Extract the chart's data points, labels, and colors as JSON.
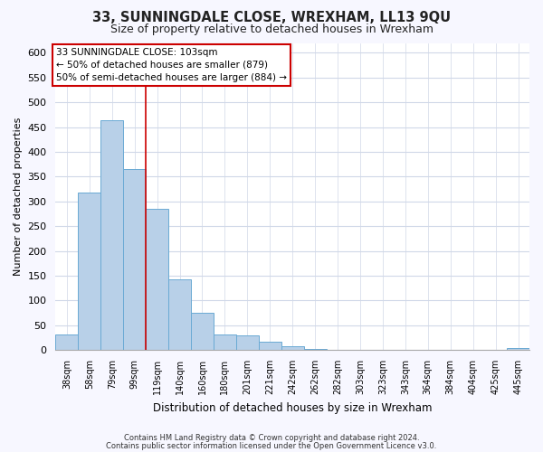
{
  "title": "33, SUNNINGDALE CLOSE, WREXHAM, LL13 9QU",
  "subtitle": "Size of property relative to detached houses in Wrexham",
  "xlabel": "Distribution of detached houses by size in Wrexham",
  "ylabel": "Number of detached properties",
  "bar_values": [
    32,
    318,
    464,
    365,
    285,
    142,
    75,
    32,
    29,
    17,
    7,
    2,
    1,
    1,
    1,
    0,
    0,
    0,
    0,
    0,
    3
  ],
  "bin_labels": [
    "38sqm",
    "58sqm",
    "79sqm",
    "99sqm",
    "119sqm",
    "140sqm",
    "160sqm",
    "180sqm",
    "201sqm",
    "221sqm",
    "242sqm",
    "262sqm",
    "282sqm",
    "303sqm",
    "323sqm",
    "343sqm",
    "364sqm",
    "384sqm",
    "404sqm",
    "425sqm",
    "445sqm"
  ],
  "bar_color": "#b8d0e8",
  "bar_edge_color": "#6aaad4",
  "vline_color": "#cc0000",
  "ylim": [
    0,
    620
  ],
  "yticks": [
    0,
    50,
    100,
    150,
    200,
    250,
    300,
    350,
    400,
    450,
    500,
    550,
    600
  ],
  "annotation_line1": "33 SUNNINGDALE CLOSE: 103sqm",
  "annotation_line2": "← 50% of detached houses are smaller (879)",
  "annotation_line3": "50% of semi-detached houses are larger (884) →",
  "annotation_box_edgecolor": "#cc0000",
  "footnote1": "Contains HM Land Registry data © Crown copyright and database right 2024.",
  "footnote2": "Contains public sector information licensed under the Open Government Licence v3.0.",
  "bg_color": "#f7f7ff",
  "plot_bg_color": "#ffffff",
  "grid_color": "#d0d8e8",
  "title_fontsize": 10.5,
  "subtitle_fontsize": 9,
  "ylabel_fontsize": 8,
  "xlabel_fontsize": 8.5
}
